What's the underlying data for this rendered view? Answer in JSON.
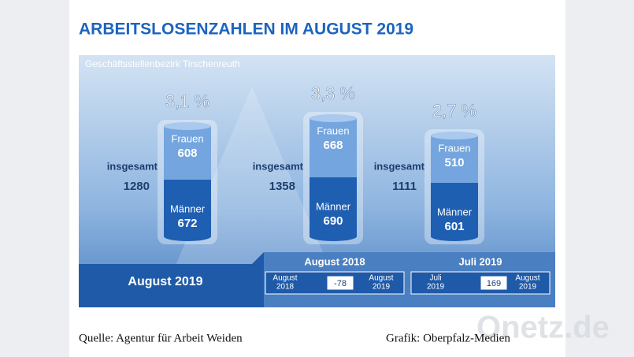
{
  "header": {
    "title": "ARBEITSLOSENZAHLEN IM AUGUST 2019"
  },
  "panel": {
    "subtitle": "Geschäftsstellenbezirk Tirschenreuth"
  },
  "columns": [
    {
      "rate": "3,1 %",
      "total_label": "insgesamt",
      "total": 1280,
      "women_label": "Frauen",
      "women": 608,
      "men_label": "Männer",
      "men": 672
    },
    {
      "rate": "3,3 %",
      "total_label": "insgesamt",
      "total": 1358,
      "women_label": "Frauen",
      "women": 668,
      "men_label": "Männer",
      "men": 690
    },
    {
      "rate": "2,7 %",
      "total_label": "insgesamt",
      "total": 1111,
      "women_label": "Frauen",
      "women": 510,
      "men_label": "Männer",
      "men": 601
    }
  ],
  "current_period": "August 2019",
  "comparisons": [
    {
      "title": "August 2018",
      "from": [
        "August",
        "2018"
      ],
      "change": -78,
      "to": [
        "August",
        "2019"
      ]
    },
    {
      "title": "Juli 2019",
      "from": [
        "Juli",
        "2019"
      ],
      "change": 169,
      "to": [
        "August",
        "2019"
      ]
    }
  ],
  "footer": {
    "source": "Quelle: Agentur für Arbeit Weiden",
    "credit": "Grafik: Oberpfalz-Medien",
    "watermark": "Onetz.de"
  }
}
